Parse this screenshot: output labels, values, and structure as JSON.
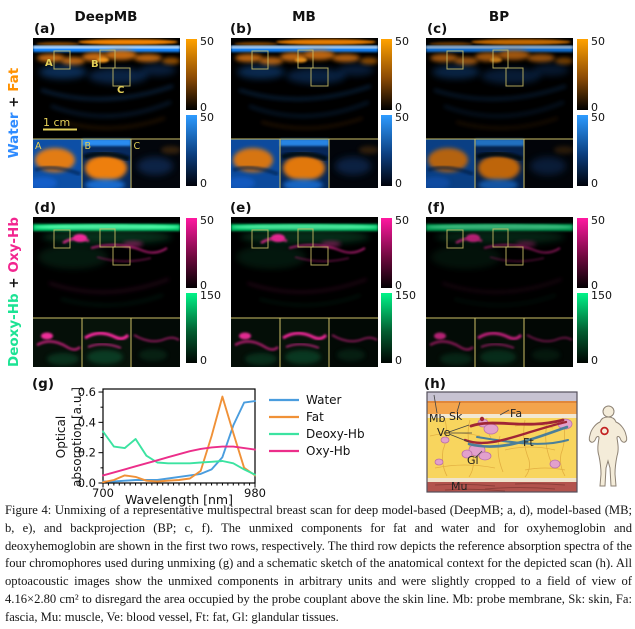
{
  "figure": {
    "column_titles": [
      "DeepMB",
      "MB",
      "BP"
    ],
    "panel_labels": {
      "row1": [
        "(a)",
        "(b)",
        "(c)"
      ],
      "row2": [
        "(d)",
        "(e)",
        "(f)"
      ],
      "spectra": "(g)",
      "schematic": "(h)"
    },
    "row1": {
      "label_parts": {
        "first": "Water",
        "plus": " + ",
        "second": "Fat"
      },
      "colors": {
        "first": "#2e8bff",
        "second": "#ff9100"
      },
      "colorbar_fat": {
        "max": "50",
        "min": "0"
      },
      "colorbar_water": {
        "max": "50",
        "min": "0"
      },
      "scalebar_text": "1 cm",
      "roi_labels": [
        "A",
        "B",
        "C"
      ],
      "inset_labels": [
        "A",
        "B",
        "C"
      ],
      "roi_color": "#cdbf66",
      "annotation_color": "#e3cf58"
    },
    "row2": {
      "label_parts": {
        "first": "Deoxy-Hb",
        "plus": " + ",
        "second": "Oxy-Hb"
      },
      "colors": {
        "first": "#1ce394",
        "second": "#f2268f"
      },
      "colorbar_oxy": {
        "max": "50",
        "min": "0"
      },
      "colorbar_deoxy": {
        "max": "150",
        "min": "0"
      }
    },
    "colorbar_colors": {
      "fat": [
        "#ffa200",
        "#8a4a05",
        "#000000"
      ],
      "water": [
        "#2d9bff",
        "#0c3f80",
        "#00020a"
      ],
      "oxy": [
        "#ff18a0",
        "#70093f",
        "#020002"
      ],
      "deoxy": [
        "#00f488",
        "#035c30",
        "#000502"
      ]
    }
  },
  "chart_data": {
    "type": "line",
    "title": "",
    "xlabel": "Wavelength [nm]",
    "ylabel": "Optical absorption [a.u.]",
    "xlim": [
      700,
      980
    ],
    "ylim": [
      0,
      0.62
    ],
    "xticks": [
      700,
      980
    ],
    "yticks": [
      0.0,
      0.2,
      0.4,
      0.6
    ],
    "grid": false,
    "legend_position": "right",
    "x": [
      700,
      720,
      740,
      760,
      780,
      800,
      820,
      840,
      860,
      880,
      900,
      920,
      940,
      960,
      980
    ],
    "series": [
      {
        "name": "Water",
        "color": "#4a9dde",
        "values": [
          0.01,
          0.01,
          0.015,
          0.02,
          0.02,
          0.02,
          0.03,
          0.04,
          0.05,
          0.06,
          0.09,
          0.17,
          0.38,
          0.53,
          0.54
        ]
      },
      {
        "name": "Fat",
        "color": "#f09137",
        "values": [
          0.005,
          0.02,
          0.05,
          0.04,
          0.015,
          0.01,
          0.015,
          0.02,
          0.03,
          0.08,
          0.31,
          0.57,
          0.33,
          0.1,
          0.05
        ]
      },
      {
        "name": "Deoxy-Hb",
        "color": "#3ce3a1",
        "values": [
          0.34,
          0.24,
          0.23,
          0.29,
          0.18,
          0.135,
          0.13,
          0.13,
          0.13,
          0.135,
          0.14,
          0.145,
          0.13,
          0.09,
          0.055
        ]
      },
      {
        "name": "Oxy-Hb",
        "color": "#ec2e8a",
        "values": [
          0.05,
          0.07,
          0.09,
          0.11,
          0.13,
          0.15,
          0.17,
          0.19,
          0.21,
          0.225,
          0.235,
          0.24,
          0.24,
          0.23,
          0.22
        ]
      }
    ]
  },
  "schematic": {
    "labels": {
      "mb": "Mb",
      "sk": "Sk",
      "fa": "Fa",
      "ve": "Ve",
      "ft": "Ft",
      "gl": "Gl",
      "mu": "Mu"
    },
    "palette": {
      "membrane": "#c7c3d2",
      "skin": "#f3a44c",
      "fascia": "#f2e8d2",
      "fat": "#f8d55e",
      "gland": "#e2a0cc",
      "vessel_red": "#a02535",
      "vessel_blue": "#4b7f99",
      "muscle": "#b2534d",
      "body_marker": "#c32222"
    }
  },
  "caption": {
    "text": "Figure 4: Unmixing of a representative multispectral breast scan for deep model-based (DeepMB; a, d), model-based (MB; b, e), and backprojection (BP; c, f). The unmixed components for fat and water and for oxyhemoglobin and deoxyhemoglobin are shown in the first two rows, respectively. The third row depicts the reference absorption spectra of the four chromophores used during unmixing (g) and a schematic sketch of the anatomical context for the depicted scan (h). All optoacoustic images show the unmixed components in arbitrary units and were slightly cropped to a field of view of 4.16×2.80 cm² to disregard the area occupied by the probe couplant above the skin line. Mb: probe membrane, Sk: skin, Fa: fascia, Mu: muscle, Ve: blood vessel, Ft: fat, Gl: glandular tissues."
  }
}
